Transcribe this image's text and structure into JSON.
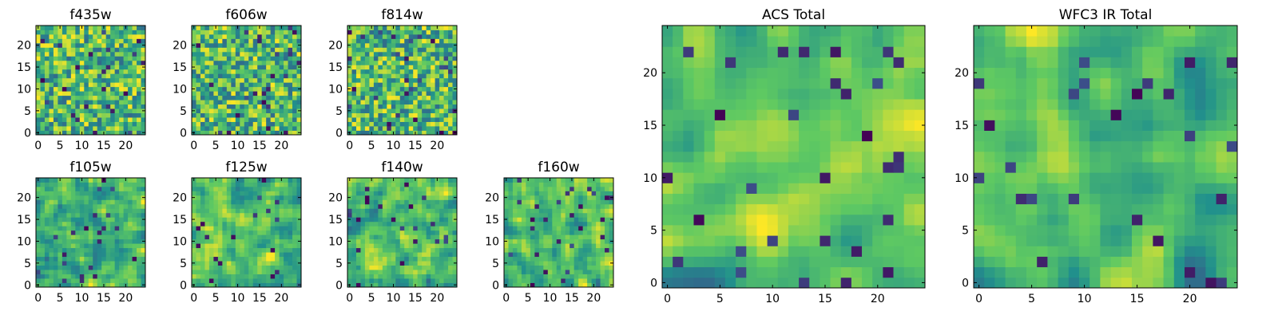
{
  "figure": {
    "description_note": "Multi-panel grid of 25x25 pixel-intensity heatmaps per HST filter",
    "colormap": "viridis",
    "colormap_stops": [
      "#440154",
      "#3b528b",
      "#21918c",
      "#5ec962",
      "#fde725"
    ]
  },
  "chart_data": [
    {
      "type": "heatmap",
      "title": "f435w",
      "grid_size": [
        25,
        25
      ],
      "xlim": [
        0,
        24
      ],
      "ylim": [
        0,
        24
      ],
      "xticks": [
        0,
        5,
        10,
        15,
        20
      ],
      "yticks": [
        0,
        5,
        10,
        15,
        20
      ],
      "xtick_labels": [
        "0",
        "5",
        "10",
        "15",
        "20"
      ],
      "ytick_labels": [
        "0",
        "5",
        "10",
        "15",
        "20"
      ],
      "seed": 11
    },
    {
      "type": "heatmap",
      "title": "f606w",
      "grid_size": [
        25,
        25
      ],
      "xlim": [
        0,
        24
      ],
      "ylim": [
        0,
        24
      ],
      "xticks": [
        0,
        5,
        10,
        15,
        20
      ],
      "yticks": [
        0,
        5,
        10,
        15,
        20
      ],
      "xtick_labels": [
        "0",
        "5",
        "10",
        "15",
        "20"
      ],
      "ytick_labels": [
        "0",
        "5",
        "10",
        "15",
        "20"
      ],
      "seed": 23
    },
    {
      "type": "heatmap",
      "title": "f814w",
      "grid_size": [
        25,
        25
      ],
      "xlim": [
        0,
        24
      ],
      "ylim": [
        0,
        24
      ],
      "xticks": [
        0,
        5,
        10,
        15,
        20
      ],
      "yticks": [
        0,
        5,
        10,
        15,
        20
      ],
      "xtick_labels": [
        "0",
        "5",
        "10",
        "15",
        "20"
      ],
      "ytick_labels": [
        "0",
        "5",
        "10",
        "15",
        "20"
      ],
      "seed": 37
    },
    {
      "type": "heatmap",
      "title": "f105w",
      "grid_size": [
        25,
        25
      ],
      "xlim": [
        0,
        24
      ],
      "ylim": [
        0,
        24
      ],
      "xticks": [
        0,
        5,
        10,
        15,
        20
      ],
      "yticks": [
        0,
        5,
        10,
        15,
        20
      ],
      "xtick_labels": [
        "0",
        "5",
        "10",
        "15",
        "20"
      ],
      "ytick_labels": [
        "0",
        "5",
        "10",
        "15",
        "20"
      ],
      "seed": 41
    },
    {
      "type": "heatmap",
      "title": "f125w",
      "grid_size": [
        25,
        25
      ],
      "xlim": [
        0,
        24
      ],
      "ylim": [
        0,
        24
      ],
      "xticks": [
        0,
        5,
        10,
        15,
        20
      ],
      "yticks": [
        0,
        5,
        10,
        15,
        20
      ],
      "xtick_labels": [
        "0",
        "5",
        "10",
        "15",
        "20"
      ],
      "ytick_labels": [
        "0",
        "5",
        "10",
        "15",
        "20"
      ],
      "seed": 53
    },
    {
      "type": "heatmap",
      "title": "f140w",
      "grid_size": [
        25,
        25
      ],
      "xlim": [
        0,
        24
      ],
      "ylim": [
        0,
        24
      ],
      "xticks": [
        0,
        5,
        10,
        15,
        20
      ],
      "yticks": [
        0,
        5,
        10,
        15,
        20
      ],
      "xtick_labels": [
        "0",
        "5",
        "10",
        "15",
        "20"
      ],
      "ytick_labels": [
        "0",
        "5",
        "10",
        "15",
        "20"
      ],
      "seed": 67
    },
    {
      "type": "heatmap",
      "title": "f160w",
      "grid_size": [
        25,
        25
      ],
      "xlim": [
        0,
        24
      ],
      "ylim": [
        0,
        24
      ],
      "xticks": [
        0,
        5,
        10,
        15,
        20
      ],
      "yticks": [
        0,
        5,
        10,
        15,
        20
      ],
      "xtick_labels": [
        "0",
        "5",
        "10",
        "15",
        "20"
      ],
      "ytick_labels": [
        "0",
        "5",
        "10",
        "15",
        "20"
      ],
      "seed": 79
    },
    {
      "type": "heatmap",
      "title": "ACS Total",
      "grid_size": [
        25,
        25
      ],
      "xlim": [
        0,
        24
      ],
      "ylim": [
        0,
        24
      ],
      "xticks": [
        0,
        5,
        10,
        15,
        20
      ],
      "yticks": [
        0,
        5,
        10,
        15,
        20
      ],
      "xtick_labels": [
        "0",
        "5",
        "10",
        "15",
        "20"
      ],
      "ytick_labels": [
        "0",
        "5",
        "10",
        "15",
        "20"
      ],
      "seed": 97
    },
    {
      "type": "heatmap",
      "title": "WFC3 IR Total",
      "grid_size": [
        25,
        25
      ],
      "xlim": [
        0,
        24
      ],
      "ylim": [
        0,
        24
      ],
      "xticks": [
        0,
        5,
        10,
        15,
        20
      ],
      "yticks": [
        0,
        5,
        10,
        15,
        20
      ],
      "xtick_labels": [
        "0",
        "5",
        "10",
        "15",
        "20"
      ],
      "ytick_labels": [
        "0",
        "5",
        "10",
        "15",
        "20"
      ],
      "seed": 131
    }
  ]
}
